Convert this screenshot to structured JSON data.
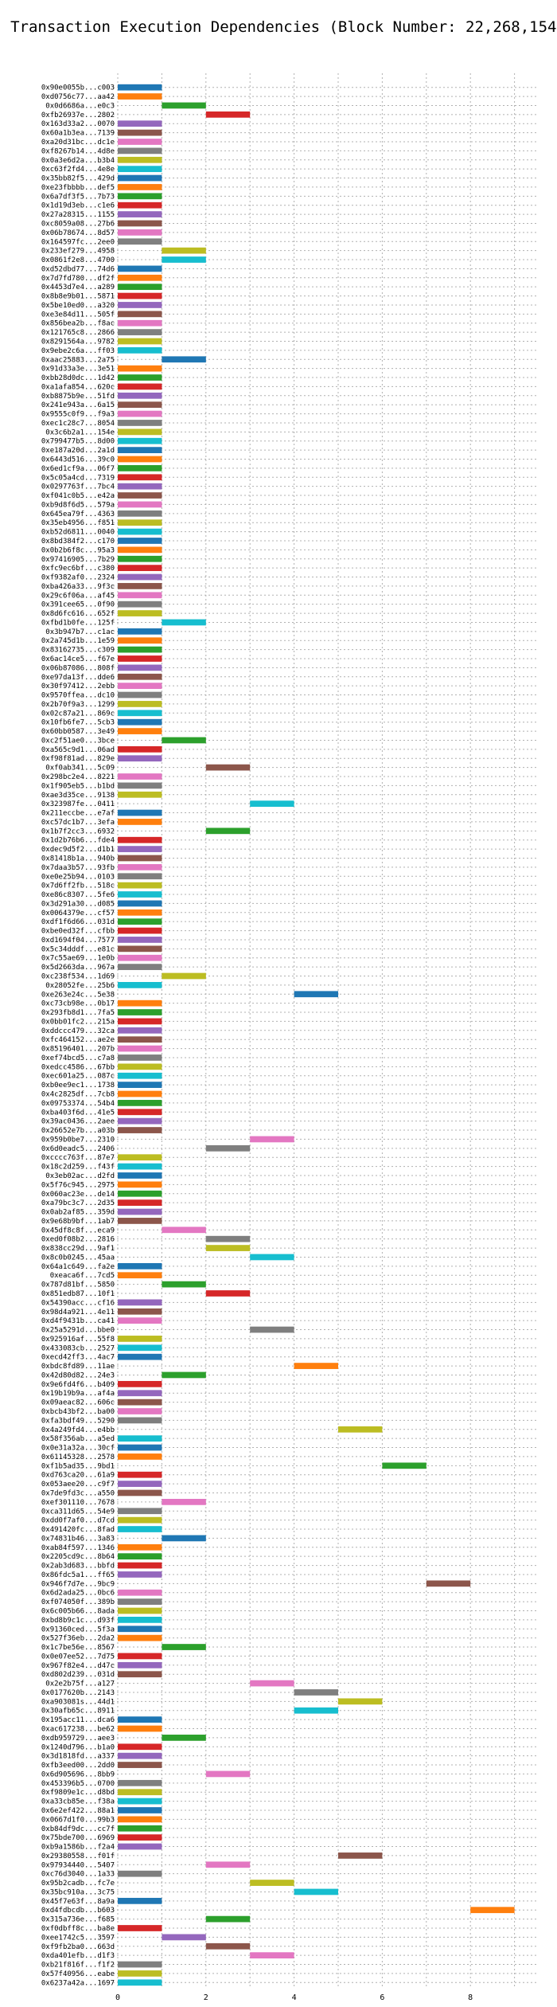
{
  "chart_data": {
    "type": "bar",
    "orientation": "horizontal",
    "title": "Transaction Execution Dependencies (Block Number: 22,268,154)",
    "xlabel": "",
    "ylabel": "",
    "xlim": [
      0,
      9.5
    ],
    "xticks": [
      0,
      2,
      4,
      6,
      8
    ],
    "grid": true,
    "palette": [
      "#1f77b4",
      "#ff7f0e",
      "#2ca02c",
      "#d62728",
      "#9467bd",
      "#8c564b",
      "#e377c2",
      "#7f7f7f",
      "#bcbd22",
      "#17becf"
    ],
    "rows": [
      {
        "label": "0x90e0055b...c003",
        "start": 0
      },
      {
        "label": "0xd0756c77...aa42",
        "start": 0
      },
      {
        "label": "0x0d6686a...e0c3",
        "start": 1
      },
      {
        "label": "0xfb26937e...2802",
        "start": 2
      },
      {
        "label": "0x163d33a2...0070",
        "start": 0
      },
      {
        "label": "0x60a1b3ea...7139",
        "start": 0
      },
      {
        "label": "0xa20d31bc...dc1e",
        "start": 0
      },
      {
        "label": "0xf8267b14...4d8e",
        "start": 0
      },
      {
        "label": "0x0a3e6d2a...b3b4",
        "start": 0
      },
      {
        "label": "0xc63f2fd4...4e8e",
        "start": 0
      },
      {
        "label": "0x35bb82f5...429d",
        "start": 0
      },
      {
        "label": "0xe23fbbbb...def5",
        "start": 0
      },
      {
        "label": "0x6a7df3f5...7b73",
        "start": 0
      },
      {
        "label": "0x1d19d3eb...c1e6",
        "start": 0
      },
      {
        "label": "0x27a28315...1155",
        "start": 0
      },
      {
        "label": "0xc8059a08...27b6",
        "start": 0
      },
      {
        "label": "0x06b78674...8d57",
        "start": 0
      },
      {
        "label": "0x164597fc...2ee0",
        "start": 0
      },
      {
        "label": "0x233ef279...4958",
        "start": 1
      },
      {
        "label": "0x0861f2e8...4700",
        "start": 1
      },
      {
        "label": "0xd52dbd77...74d6",
        "start": 0
      },
      {
        "label": "0x7d7fd780...df2f",
        "start": 0
      },
      {
        "label": "0x4453d7e4...a289",
        "start": 0
      },
      {
        "label": "0x8b8e9b01...5871",
        "start": 0
      },
      {
        "label": "0x5be10ed0...a320",
        "start": 0
      },
      {
        "label": "0xe3e84d11...505f",
        "start": 0
      },
      {
        "label": "0x856bea2b...f8ac",
        "start": 0
      },
      {
        "label": "0x121765c8...2866",
        "start": 0
      },
      {
        "label": "0x8291564a...9782",
        "start": 0
      },
      {
        "label": "0x9ebe2c6a...ff03",
        "start": 0
      },
      {
        "label": "0xaac25883...2a75",
        "start": 1
      },
      {
        "label": "0x91d33a3e...3e51",
        "start": 0
      },
      {
        "label": "0xbb28d0dc...1d42",
        "start": 0
      },
      {
        "label": "0xa1afa854...620c",
        "start": 0
      },
      {
        "label": "0xb8875b9e...51fd",
        "start": 0
      },
      {
        "label": "0x241e943a...6a15",
        "start": 0
      },
      {
        "label": "0x9555c0f9...f9a3",
        "start": 0
      },
      {
        "label": "0xec1c28c7...8054",
        "start": 0
      },
      {
        "label": "0x3c6b2a1...154e",
        "start": 0
      },
      {
        "label": "0x799477b5...8d00",
        "start": 0
      },
      {
        "label": "0xe187a20d...2a1d",
        "start": 0
      },
      {
        "label": "0x6443d516...39c0",
        "start": 0
      },
      {
        "label": "0x6ed1cf9a...06f7",
        "start": 0
      },
      {
        "label": "0x5c05a4cd...7319",
        "start": 0
      },
      {
        "label": "0x0297763f...7bc4",
        "start": 0
      },
      {
        "label": "0xf041c0b5...e42a",
        "start": 0
      },
      {
        "label": "0xb9d8f6d5...579a",
        "start": 0
      },
      {
        "label": "0x645ea79f...4363",
        "start": 0
      },
      {
        "label": "0x35eb4956...f851",
        "start": 0
      },
      {
        "label": "0xb52d6811...0040",
        "start": 0
      },
      {
        "label": "0x8bd384f2...c170",
        "start": 0
      },
      {
        "label": "0x0b2b6f8c...95a3",
        "start": 0
      },
      {
        "label": "0x97416905...7b29",
        "start": 0
      },
      {
        "label": "0xfc9ec6bf...c380",
        "start": 0
      },
      {
        "label": "0xf9382af0...2324",
        "start": 0
      },
      {
        "label": "0xba426a33...9f3c",
        "start": 0
      },
      {
        "label": "0x29c6f06a...af45",
        "start": 0
      },
      {
        "label": "0x391cee65...0f90",
        "start": 0
      },
      {
        "label": "0x8d6fc616...652f",
        "start": 0
      },
      {
        "label": "0xfbd1b0fe...125f",
        "start": 1
      },
      {
        "label": "0x3b947b7...c1ac",
        "start": 0
      },
      {
        "label": "0x2a745d1b...1e59",
        "start": 0
      },
      {
        "label": "0x83162735...c309",
        "start": 0
      },
      {
        "label": "0x6ac14ce5...f67e",
        "start": 0
      },
      {
        "label": "0x06b87086...808f",
        "start": 0
      },
      {
        "label": "0xe97da13f...dde6",
        "start": 0
      },
      {
        "label": "0x30f97412...2ebb",
        "start": 0
      },
      {
        "label": "0x9570ffea...dc10",
        "start": 0
      },
      {
        "label": "0x2b70f9a3...1299",
        "start": 0
      },
      {
        "label": "0x02c87a21...869c",
        "start": 0
      },
      {
        "label": "0x10fb6fe7...5cb3",
        "start": 0
      },
      {
        "label": "0x60bb0587...3e49",
        "start": 0
      },
      {
        "label": "0xc2f51ae0...3bce",
        "start": 1
      },
      {
        "label": "0xa565c9d1...06ad",
        "start": 0
      },
      {
        "label": "0xf98f81ad...829e",
        "start": 0
      },
      {
        "label": "0xf0ab341...5c09",
        "start": 2
      },
      {
        "label": "0x298bc2e4...8221",
        "start": 0
      },
      {
        "label": "0x1f905eb5...b1bd",
        "start": 0
      },
      {
        "label": "0xae3d35ce...9138",
        "start": 0
      },
      {
        "label": "0x323987fe...0411",
        "start": 3
      },
      {
        "label": "0x211eccbe...e7af",
        "start": 0
      },
      {
        "label": "0xc57dc1b7...3efa",
        "start": 0
      },
      {
        "label": "0x1b7f2cc3...6932",
        "start": 2
      },
      {
        "label": "0x1d2b76b6...fde4",
        "start": 0
      },
      {
        "label": "0xdec9d5f2...d1b1",
        "start": 0
      },
      {
        "label": "0x81418b1a...940b",
        "start": 0
      },
      {
        "label": "0x7daa3b57...93fb",
        "start": 0
      },
      {
        "label": "0xe0e25b94...0103",
        "start": 0
      },
      {
        "label": "0x7d6ff2fb...518c",
        "start": 0
      },
      {
        "label": "0xe86c8307...5fe6",
        "start": 0
      },
      {
        "label": "0x3d291a30...d085",
        "start": 0
      },
      {
        "label": "0x0064379e...cf57",
        "start": 0
      },
      {
        "label": "0xdf1f6d66...031d",
        "start": 0
      },
      {
        "label": "0xbe0ed32f...cfbb",
        "start": 0
      },
      {
        "label": "0xd1694f04...7577",
        "start": 0
      },
      {
        "label": "0x5c34dddf...e81c",
        "start": 0
      },
      {
        "label": "0x7c55ae69...1e0b",
        "start": 0
      },
      {
        "label": "0x5d2663da...967a",
        "start": 0
      },
      {
        "label": "0xc238f534...1d69",
        "start": 1
      },
      {
        "label": "0x28052fe...25b6",
        "start": 0
      },
      {
        "label": "0xe263e24c...5e38",
        "start": 4
      },
      {
        "label": "0xc73cb98e...0b17",
        "start": 0
      },
      {
        "label": "0x293fb8d1...7fa5",
        "start": 0
      },
      {
        "label": "0x0bb01fc2...215a",
        "start": 0
      },
      {
        "label": "0xddccc479...32ca",
        "start": 0
      },
      {
        "label": "0xfc464152...ae2e",
        "start": 0
      },
      {
        "label": "0x85196401...207b",
        "start": 0
      },
      {
        "label": "0xef74bcd5...c7a8",
        "start": 0
      },
      {
        "label": "0xedcc4586...67bb",
        "start": 0
      },
      {
        "label": "0xec601a25...087c",
        "start": 0
      },
      {
        "label": "0xb0ee9ec1...1738",
        "start": 0
      },
      {
        "label": "0x4c2825df...7cb8",
        "start": 0
      },
      {
        "label": "0x09753374...54b4",
        "start": 0
      },
      {
        "label": "0xba403f6d...41e5",
        "start": 0
      },
      {
        "label": "0x39ac0436...2aee",
        "start": 0
      },
      {
        "label": "0x26652e7b...a03b",
        "start": 0
      },
      {
        "label": "0x959b0be7...2310",
        "start": 3
      },
      {
        "label": "0x6d0eadc5...2406",
        "start": 2
      },
      {
        "label": "0xcccc763f...87e7",
        "start": 0
      },
      {
        "label": "0x18c2d259...f43f",
        "start": 0
      },
      {
        "label": "0x3eb02ac...d2fd",
        "start": 0
      },
      {
        "label": "0x5f76c945...2975",
        "start": 0
      },
      {
        "label": "0x060ac23e...de14",
        "start": 0
      },
      {
        "label": "0xa79bc3c7...2d35",
        "start": 0
      },
      {
        "label": "0x0ab2af85...359d",
        "start": 0
      },
      {
        "label": "0x9e68b9bf...1ab7",
        "start": 0
      },
      {
        "label": "0x45df8c8f...eca9",
        "start": 1
      },
      {
        "label": "0xed0f08b2...2816",
        "start": 2
      },
      {
        "label": "0x838cc29d...9af1",
        "start": 2
      },
      {
        "label": "0x8c0b0245...45aa",
        "start": 3
      },
      {
        "label": "0x64a1c649...fa2e",
        "start": 0
      },
      {
        "label": "0xeaca6f...7cd5",
        "start": 0
      },
      {
        "label": "0x787d81bf...5850",
        "start": 1
      },
      {
        "label": "0x851edb87...10f1",
        "start": 2
      },
      {
        "label": "0x54390acc...cf16",
        "start": 0
      },
      {
        "label": "0x98d4a921...4e11",
        "start": 0
      },
      {
        "label": "0xd4f9431b...ca41",
        "start": 0
      },
      {
        "label": "0x25a5291d...bbe0",
        "start": 3
      },
      {
        "label": "0x925916af...55f8",
        "start": 0
      },
      {
        "label": "0x433083cb...2527",
        "start": 0
      },
      {
        "label": "0xecd42ff3...4ac7",
        "start": 0
      },
      {
        "label": "0xbdc8fd89...11ae",
        "start": 4
      },
      {
        "label": "0x42d80d82...24e3",
        "start": 1
      },
      {
        "label": "0x9e6fd4f6...b409",
        "start": 0
      },
      {
        "label": "0x19b19b9a...af4a",
        "start": 0
      },
      {
        "label": "0x09aeac82...606c",
        "start": 0
      },
      {
        "label": "0xbcb43bf2...ba00",
        "start": 0
      },
      {
        "label": "0xfa3bdf49...5290",
        "start": 0
      },
      {
        "label": "0x4a249fd4...e4bb",
        "start": 5
      },
      {
        "label": "0x58f356ab...a5ed",
        "start": 0
      },
      {
        "label": "0x0e31a32a...30cf",
        "start": 0
      },
      {
        "label": "0x61145328...2578",
        "start": 0
      },
      {
        "label": "0xf1b5ad35...9bd1",
        "start": 6
      },
      {
        "label": "0xd763ca20...61a9",
        "start": 0
      },
      {
        "label": "0x053aee20...c9f7",
        "start": 0
      },
      {
        "label": "0x7de9fd3c...a550",
        "start": 0
      },
      {
        "label": "0xef301110...7678",
        "start": 1
      },
      {
        "label": "0xca311d65...54e9",
        "start": 0
      },
      {
        "label": "0xdd0f7af0...d7cd",
        "start": 0
      },
      {
        "label": "0x491420fc...8fad",
        "start": 0
      },
      {
        "label": "0x74831b46...3a83",
        "start": 1
      },
      {
        "label": "0xab84f597...1346",
        "start": 0
      },
      {
        "label": "0x2205cd9c...8b64",
        "start": 0
      },
      {
        "label": "0x2ab3d683...bbfd",
        "start": 0
      },
      {
        "label": "0x86fdc5a1...ff65",
        "start": 0
      },
      {
        "label": "0x946f7d7e...9bc9",
        "start": 7
      },
      {
        "label": "0x6d2ada25...0bc6",
        "start": 0
      },
      {
        "label": "0xf074050f...389b",
        "start": 0
      },
      {
        "label": "0x6c005b66...8ada",
        "start": 0
      },
      {
        "label": "0xbd8b9c1c...d93f",
        "start": 0
      },
      {
        "label": "0x91360ced...5f3a",
        "start": 0
      },
      {
        "label": "0x527f36eb...2da2",
        "start": 0
      },
      {
        "label": "0x1c7be56e...8567",
        "start": 1
      },
      {
        "label": "0x0e07ee52...7d75",
        "start": 0
      },
      {
        "label": "0x967f82e4...d47c",
        "start": 0
      },
      {
        "label": "0xd802d239...031d",
        "start": 0
      },
      {
        "label": "0x2e2b75f...a127",
        "start": 3
      },
      {
        "label": "0x0177620b...2143",
        "start": 4
      },
      {
        "label": "0xa903081s...44d1",
        "start": 5
      },
      {
        "label": "0x30afb65c...8911",
        "start": 4
      },
      {
        "label": "0x195acc11...dca6",
        "start": 0
      },
      {
        "label": "0xac617238...be62",
        "start": 0
      },
      {
        "label": "0xdb959729...aee3",
        "start": 1
      },
      {
        "label": "0x1240d796...b1a0",
        "start": 0
      },
      {
        "label": "0x3d1818fd...a337",
        "start": 0
      },
      {
        "label": "0xfb3eed00...2dd0",
        "start": 0
      },
      {
        "label": "0x6d905696...8bb9",
        "start": 2
      },
      {
        "label": "0x453396b5...0700",
        "start": 0
      },
      {
        "label": "0xf9809e1c...d8bd",
        "start": 0
      },
      {
        "label": "0xa33cb85e...f38a",
        "start": 0
      },
      {
        "label": "0x6e2ef422...88a1",
        "start": 0
      },
      {
        "label": "0x0667d1f0...99b3",
        "start": 0
      },
      {
        "label": "0xb84df9dc...cc7f",
        "start": 0
      },
      {
        "label": "0x75bde700...6969",
        "start": 0
      },
      {
        "label": "0xb9a1586b...f2a4",
        "start": 0
      },
      {
        "label": "0x29380558...f01f",
        "start": 5
      },
      {
        "label": "0x97934440...5407",
        "start": 2
      },
      {
        "label": "0xc76d3040...1a33",
        "start": 0
      },
      {
        "label": "0x95b2cadb...fc7e",
        "start": 3
      },
      {
        "label": "0x35bc910a...3c75",
        "start": 4
      },
      {
        "label": "0x45f7e63f...8a9a",
        "start": 0
      },
      {
        "label": "0xd4fdbcdb...b603",
        "start": 8
      },
      {
        "label": "0x315a736e...f685",
        "start": 2
      },
      {
        "label": "0xf0dbff8c...ba8e",
        "start": 0
      },
      {
        "label": "0xee1742c5...3597",
        "start": 1
      },
      {
        "label": "0xf9fb2ba0...663d",
        "start": 2
      },
      {
        "label": "0xda401efb...d1f3",
        "start": 3
      },
      {
        "label": "0xb21f816f...f1f2",
        "start": 0
      },
      {
        "label": "0x57f40956...eabe",
        "start": 0
      },
      {
        "label": "0x6237a42a...1697",
        "start": 0
      }
    ]
  }
}
